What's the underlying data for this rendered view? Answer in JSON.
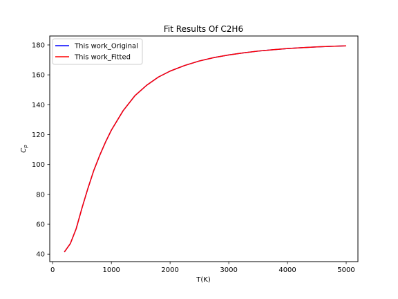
{
  "chart_data": {
    "type": "line",
    "title": "Fit Results Of C2H6",
    "xlabel": "T(K)",
    "ylabel": "Cp",
    "xlim": [
      -50,
      5200
    ],
    "ylim": [
      35,
      186
    ],
    "xticks": [
      0,
      1000,
      2000,
      3000,
      4000,
      5000
    ],
    "yticks": [
      40,
      60,
      80,
      100,
      120,
      140,
      160,
      180
    ],
    "grid": false,
    "legend_position": "upper-left",
    "series": [
      {
        "name": "This work_Original",
        "color": "#0000ff",
        "x": [
          200,
          300,
          400,
          500,
          600,
          700,
          800,
          900,
          1000,
          1200,
          1400,
          1600,
          1800,
          2000,
          2250,
          2500,
          2750,
          3000,
          3250,
          3500,
          3750,
          4000,
          4250,
          4500,
          4750,
          5000
        ],
        "y": [
          41.5,
          47,
          57,
          71,
          84,
          96,
          106,
          115,
          123,
          136,
          146,
          153,
          158.5,
          162.5,
          166.3,
          169.3,
          171.6,
          173.3,
          174.7,
          175.9,
          176.8,
          177.6,
          178.2,
          178.7,
          179.1,
          179.4
        ]
      },
      {
        "name": "This work_Fitted",
        "color": "#ff0000",
        "x": [
          200,
          300,
          400,
          500,
          600,
          700,
          800,
          900,
          1000,
          1200,
          1400,
          1600,
          1800,
          2000,
          2250,
          2500,
          2750,
          3000,
          3250,
          3500,
          3750,
          4000,
          4250,
          4500,
          4750,
          5000
        ],
        "y": [
          41.5,
          47,
          57,
          71,
          84,
          96,
          106,
          115,
          123,
          136,
          146,
          153,
          158.5,
          162.5,
          166.3,
          169.3,
          171.6,
          173.3,
          174.7,
          175.9,
          176.8,
          177.6,
          178.2,
          178.7,
          179.1,
          179.4
        ]
      }
    ]
  }
}
